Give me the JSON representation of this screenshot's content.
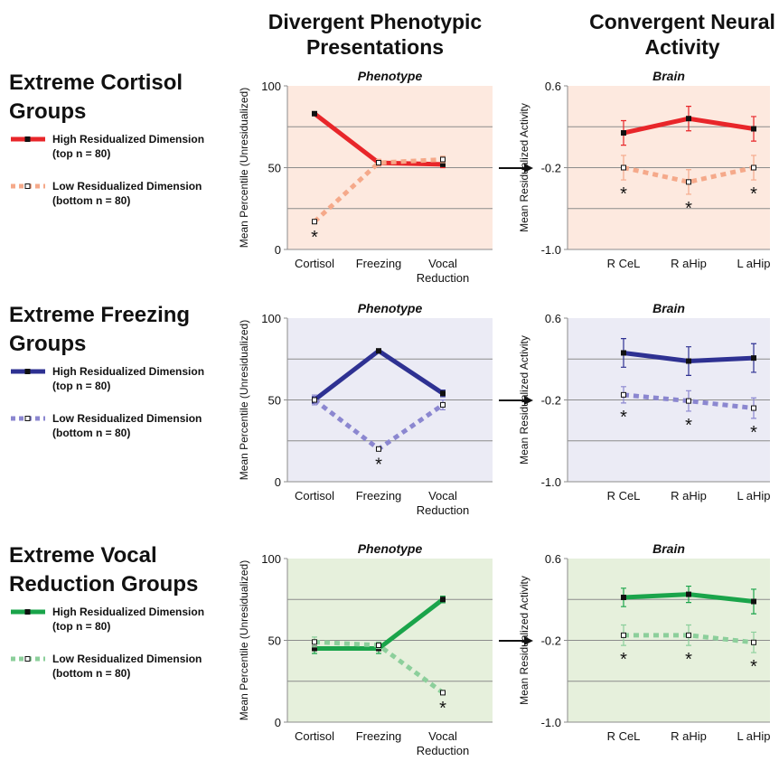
{
  "headers": [
    "Divergent Phenotypic Presentations",
    "Convergent Neural Activity"
  ],
  "rows": [
    {
      "title": "Extreme Cortisol Groups"
    },
    {
      "title": "Extreme Freezing Groups"
    },
    {
      "title": "Extreme Vocal Reduction Groups"
    }
  ],
  "chart_data": [
    {
      "type": "line",
      "subtitle": "Phenotype",
      "ylabel": "Mean Percentile (Unresidualized)",
      "categories": [
        "Cortisol",
        "Freezing",
        "Vocal Reduction"
      ],
      "ylim": [
        0,
        100
      ],
      "yticks": [
        0,
        50,
        100
      ],
      "ygrid": [
        25,
        50,
        75
      ],
      "background": "#fde9df",
      "series": [
        {
          "name": "High Residualized Dimension (top n = 80)",
          "color": "#e8262a",
          "dash": false,
          "values": [
            83,
            53,
            52
          ],
          "errors": [
            1,
            2,
            2
          ]
        },
        {
          "name": "Low Residualized Dimension (bottom n = 80)",
          "color": "#f5a98a",
          "dash": true,
          "values": [
            17,
            53,
            55
          ],
          "errors": [
            1,
            2,
            2
          ],
          "significance": [
            "*",
            null,
            null
          ]
        }
      ]
    },
    {
      "type": "line",
      "subtitle": "Brain",
      "ylabel": "Mean Residualized Activity",
      "categories": [
        "R CeL",
        "R aHip",
        "L aHip"
      ],
      "ylim": [
        -1.0,
        0.6
      ],
      "yticks": [
        {
          "value": -1.0,
          "label": "-1.0"
        },
        {
          "value": -0.2,
          "label": "-0.2"
        },
        {
          "value": 0.6,
          "label": "0.6"
        }
      ],
      "ygrid": [
        0.2,
        -0.2,
        -0.6
      ],
      "background": "#fde9df",
      "series": [
        {
          "color": "#e8262a",
          "dash": false,
          "values": [
            0.14,
            0.28,
            0.18
          ],
          "errors": [
            0.12,
            0.12,
            0.12
          ]
        },
        {
          "color": "#f5a98a",
          "dash": true,
          "values": [
            -0.2,
            -0.34,
            -0.2
          ],
          "errors": [
            0.12,
            0.12,
            0.12
          ],
          "significance": [
            "*",
            "*",
            "*"
          ]
        }
      ]
    },
    {
      "type": "line",
      "subtitle": "Phenotype",
      "ylabel": "Mean Percentile (Unresidualized)",
      "categories": [
        "Cortisol",
        "Freezing",
        "Vocal Reduction"
      ],
      "ylim": [
        0,
        100
      ],
      "yticks": [
        0,
        50,
        100
      ],
      "ygrid": [
        25,
        50,
        75
      ],
      "background": "#ebebf5",
      "series": [
        {
          "name": "High Residualized Dimension (top n = 80)",
          "color": "#2e3192",
          "dash": false,
          "values": [
            50,
            80,
            54
          ],
          "errors": [
            2,
            1,
            2
          ]
        },
        {
          "name": "Low Residualized Dimension (bottom n = 80)",
          "color": "#8b87d0",
          "dash": true,
          "values": [
            50,
            20,
            47
          ],
          "errors": [
            3,
            1,
            3
          ],
          "significance": [
            null,
            "*",
            null
          ]
        }
      ]
    },
    {
      "type": "line",
      "subtitle": "Brain",
      "ylabel": "Mean Residualized Activity",
      "categories": [
        "R CeL",
        "R aHip",
        "L aHip"
      ],
      "ylim": [
        -1.0,
        0.6
      ],
      "yticks": [
        {
          "value": -1.0,
          "label": "-1.0"
        },
        {
          "value": -0.2,
          "label": "-0.2"
        },
        {
          "value": 0.6,
          "label": "0.6"
        }
      ],
      "ygrid": [
        0.2,
        -0.2,
        -0.6
      ],
      "background": "#ebebf5",
      "series": [
        {
          "color": "#2e3192",
          "dash": false,
          "values": [
            0.26,
            0.18,
            0.21
          ],
          "errors": [
            0.14,
            0.14,
            0.14
          ]
        },
        {
          "color": "#8b87d0",
          "dash": true,
          "values": [
            -0.15,
            -0.21,
            -0.28
          ],
          "errors": [
            0.08,
            0.1,
            0.1
          ],
          "significance": [
            "*",
            "*",
            "*"
          ]
        }
      ]
    },
    {
      "type": "line",
      "subtitle": "Phenotype",
      "ylabel": "Mean Percentile (Unresidualized)",
      "categories": [
        "Cortisol",
        "Freezing",
        "Vocal Reduction"
      ],
      "ylim": [
        0,
        100
      ],
      "yticks": [
        0,
        50,
        100
      ],
      "ygrid": [
        25,
        50,
        75
      ],
      "background": "#e6f0dc",
      "series": [
        {
          "name": "High Residualized Dimension (top n = 80)",
          "color": "#1aa44a",
          "dash": false,
          "values": [
            45,
            45,
            75
          ],
          "errors": [
            3,
            3,
            2
          ]
        },
        {
          "name": "Low Residualized Dimension (bottom n = 80)",
          "color": "#8ccf9b",
          "dash": true,
          "values": [
            49,
            47,
            18
          ],
          "errors": [
            3,
            2,
            1
          ],
          "significance": [
            null,
            null,
            "*"
          ]
        }
      ]
    },
    {
      "type": "line",
      "subtitle": "Brain",
      "ylabel": "Mean Residualized Activity",
      "categories": [
        "R CeL",
        "R aHip",
        "L aHip"
      ],
      "ylim": [
        -1.0,
        0.6
      ],
      "yticks": [
        {
          "value": -1.0,
          "label": "-1.0"
        },
        {
          "value": -0.2,
          "label": "-0.2"
        },
        {
          "value": 0.6,
          "label": "0.6"
        }
      ],
      "ygrid": [
        0.2,
        -0.2,
        -0.6
      ],
      "background": "#e6f0dc",
      "series": [
        {
          "color": "#1aa44a",
          "dash": false,
          "values": [
            0.22,
            0.25,
            0.18
          ],
          "errors": [
            0.09,
            0.08,
            0.12
          ]
        },
        {
          "color": "#8ccf9b",
          "dash": true,
          "values": [
            -0.15,
            -0.15,
            -0.22
          ],
          "errors": [
            0.1,
            0.1,
            0.1
          ],
          "significance": [
            "*",
            "*",
            "*"
          ]
        }
      ]
    }
  ]
}
